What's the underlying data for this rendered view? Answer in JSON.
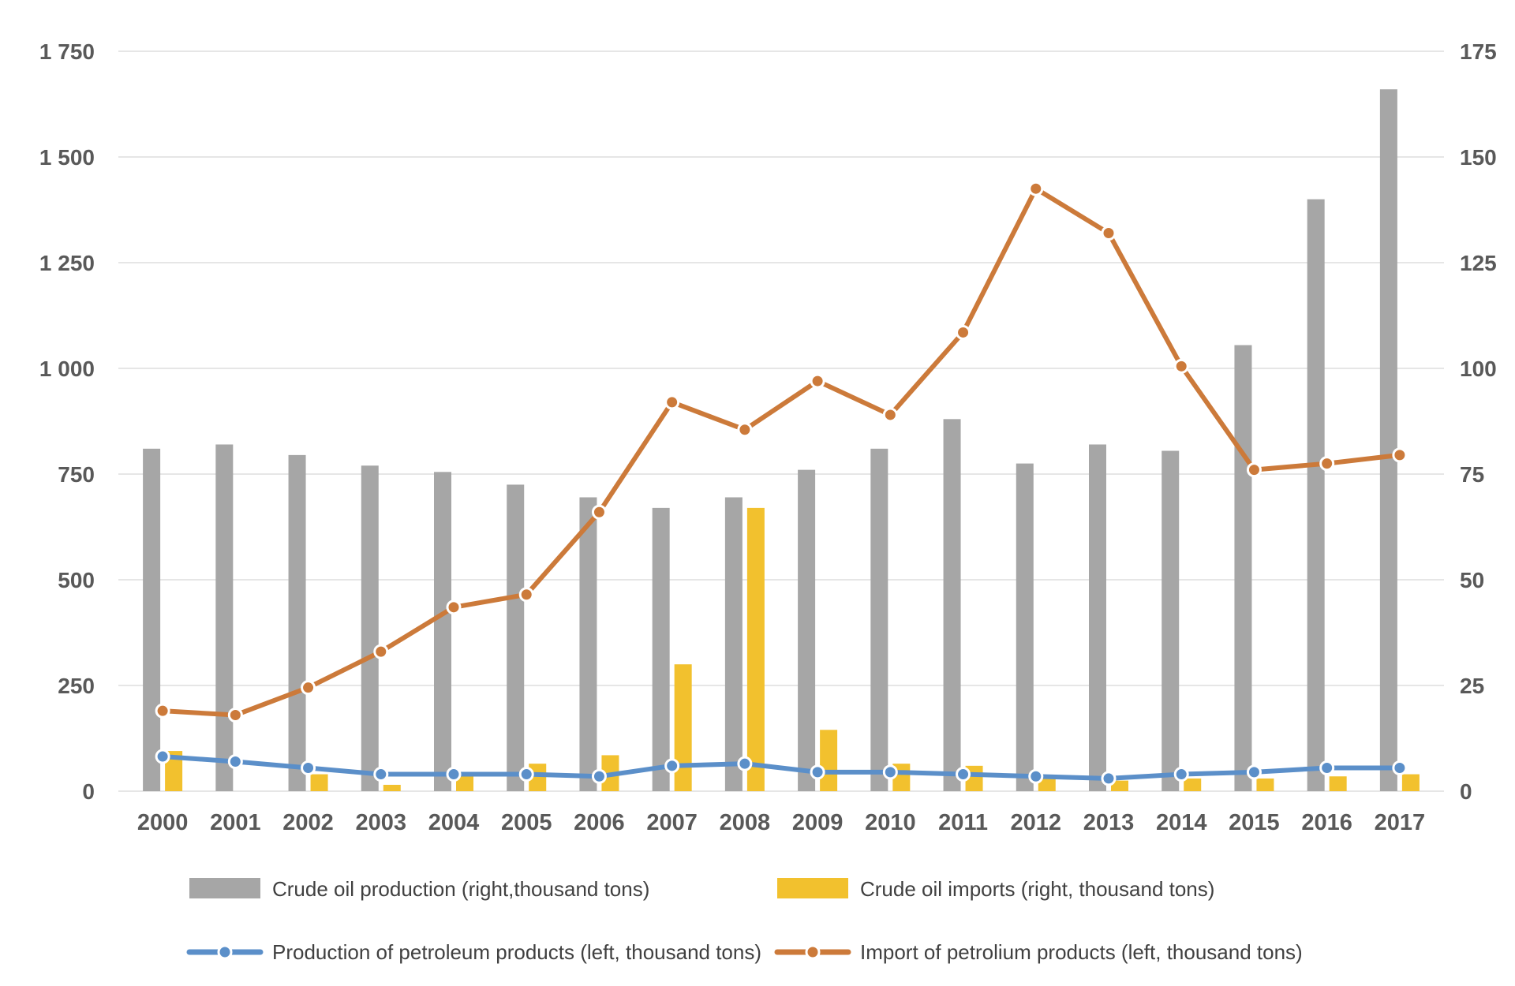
{
  "chart_data": {
    "type": "bar",
    "title": "",
    "categories": [
      "2000",
      "2001",
      "2002",
      "2003",
      "2004",
      "2005",
      "2006",
      "2007",
      "2008",
      "2009",
      "2010",
      "2011",
      "2012",
      "2013",
      "2014",
      "2015",
      "2016",
      "2017"
    ],
    "left_axis": {
      "ylim": [
        0,
        1750
      ],
      "ticks": [
        0,
        250,
        500,
        750,
        1000,
        1250,
        1500,
        1750
      ],
      "tick_labels": [
        "0",
        "250",
        "500",
        "750",
        "1 000",
        "1 250",
        "1 500",
        "1 750"
      ]
    },
    "right_axis": {
      "ylim": [
        0,
        175
      ],
      "ticks": [
        0,
        25,
        50,
        75,
        100,
        125,
        150,
        175
      ],
      "tick_labels": [
        "0",
        "25",
        "50",
        "75",
        "100",
        "125",
        "150",
        "175"
      ]
    },
    "series": [
      {
        "name": "Crude oil production (right,thousand tons)",
        "kind": "bar",
        "axis": "right",
        "color": "#a6a6a6",
        "values": [
          81,
          82,
          79.5,
          77,
          75.5,
          72.5,
          69.5,
          67,
          69.5,
          76,
          81,
          88,
          77.5,
          82,
          80.5,
          105.5,
          140,
          166
        ]
      },
      {
        "name": "Crude oil imports (right, thousand tons)",
        "kind": "bar",
        "axis": "right",
        "color": "#f2c12e",
        "values": [
          9.5,
          0,
          4,
          1.5,
          4,
          6.5,
          8.5,
          30,
          67,
          14.5,
          6.5,
          6,
          3.5,
          2.5,
          3,
          3,
          3.5,
          4
        ]
      },
      {
        "name": "Production of petroleum products (left, thousand tons)",
        "kind": "line",
        "axis": "left",
        "color": "#5b8fc9",
        "values": [
          82,
          70,
          55,
          40,
          40,
          40,
          35,
          60,
          65,
          45,
          45,
          40,
          35,
          30,
          40,
          45,
          55,
          55
        ]
      },
      {
        "name": "Import of petrolium products (left, thousand tons)",
        "kind": "line",
        "axis": "left",
        "color": "#cc7a3a",
        "values": [
          190,
          180,
          245,
          330,
          435,
          465,
          660,
          920,
          855,
          970,
          890,
          1085,
          1425,
          1320,
          1005,
          760,
          775,
          795
        ]
      }
    ],
    "legend": {
      "placement": "bottom",
      "entries": [
        "Crude oil production (right,thousand tons)",
        "Crude oil imports (right, thousand tons)",
        "Production of petroleum products (left, thousand tons)",
        "Import of petrolium products (left, thousand tons)"
      ]
    },
    "grid": true
  }
}
